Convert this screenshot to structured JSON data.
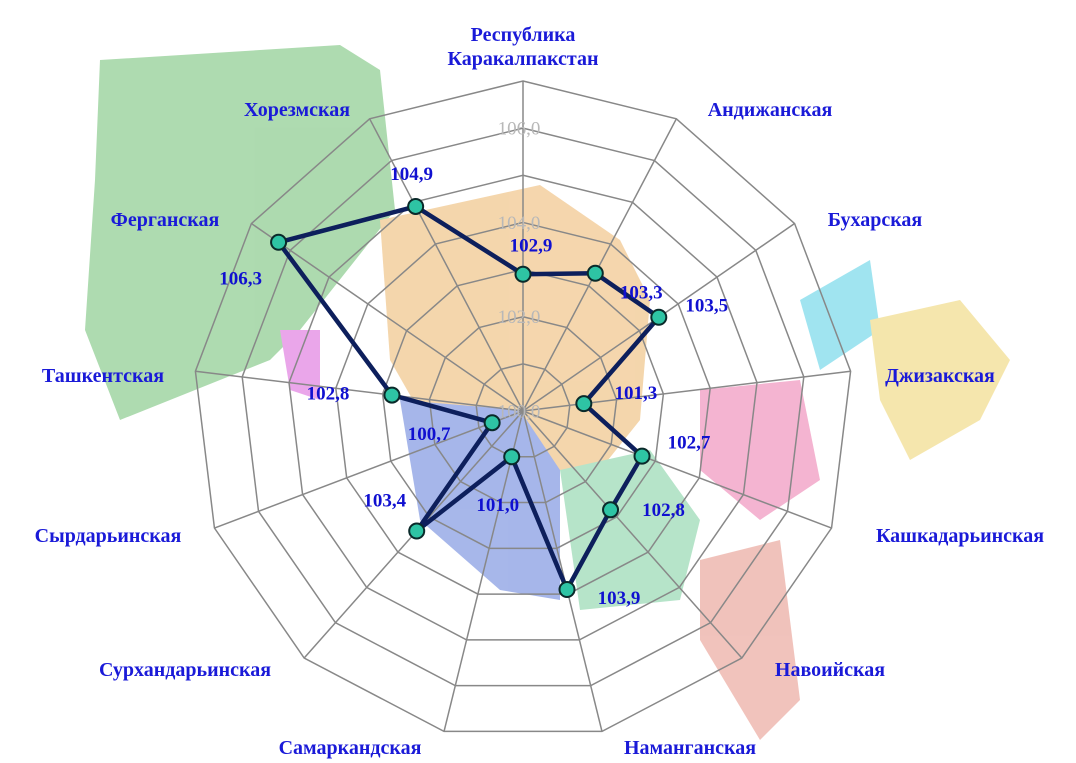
{
  "chart_data": {
    "type": "radar",
    "categories": [
      "Республика Каракалпакстан",
      "Андижанская",
      "Бухарская",
      "Джизакская",
      "Кашкадарьинская",
      "Навоийская",
      "Наманганская",
      "Самаркандская",
      "Сурхандарьинская",
      "Сырдарьинская",
      "Ташкентская",
      "Ферганская",
      "Хорезмская"
    ],
    "series": [
      {
        "color": "#0d1f5c",
        "marker_color": "#2ec4a4",
        "values": [
          102.9,
          103.3,
          103.5,
          101.3,
          102.7,
          102.8,
          103.9,
          101.0,
          103.4,
          100.7,
          102.8,
          106.3,
          104.9
        ],
        "value_labels": [
          "102,9",
          "103,3",
          "103,5",
          "101,3",
          "102,7",
          "102,8",
          "103,9",
          "101,0",
          "103,4",
          "100,7",
          "102,8",
          "106,3",
          "104,9"
        ]
      }
    ],
    "ylim": [
      100,
      107
    ],
    "yticks": [
      {
        "value": 100,
        "label": "100,0"
      },
      {
        "value": 102,
        "label": "102,0"
      },
      {
        "value": 104,
        "label": "104,0"
      },
      {
        "value": 106,
        "label": "106,0"
      }
    ],
    "minor_yticks": [
      101,
      103,
      105,
      107
    ],
    "grid": true
  }
}
